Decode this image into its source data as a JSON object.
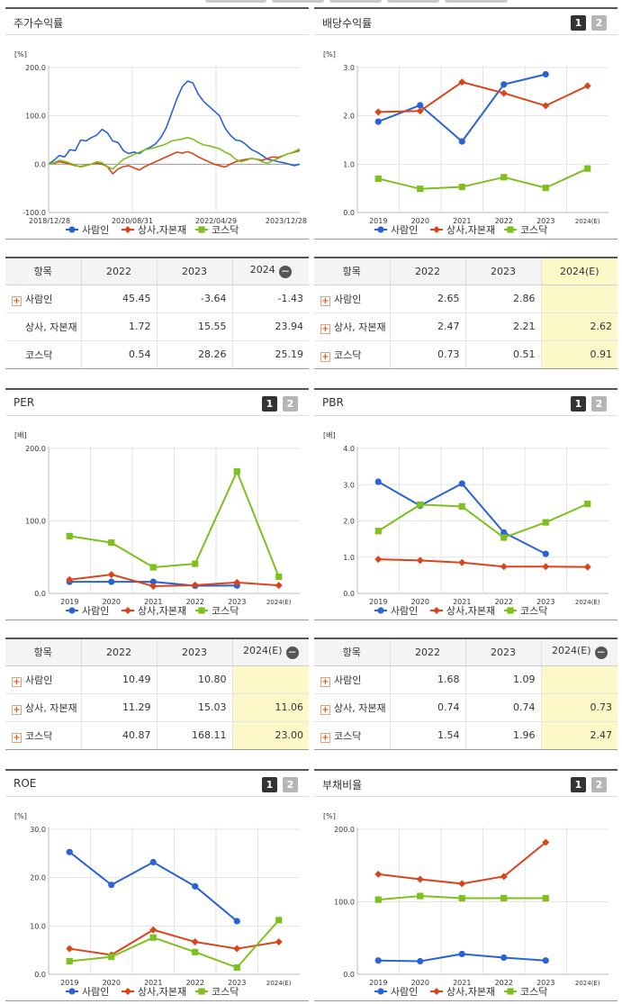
{
  "panels": [
    {
      "title": "주가수익률",
      "pager": [],
      "chart_data": {
        "type": "line",
        "unit": "[%]",
        "yticks": [
          "200.0",
          "100.0",
          "0.0",
          "-100.0"
        ],
        "ylim": [
          -100,
          200
        ],
        "x_labels": [
          "2018/12/28",
          "2020/08/31",
          "2022/04/29",
          "2023/12/28"
        ],
        "series": [
          {
            "name": "사람인",
            "color": "#2a63d4",
            "marker": "circle",
            "values": [
              0,
              8,
              18,
              15,
              30,
              28,
              50,
              48,
              55,
              60,
              72,
              65,
              48,
              45,
              28,
              22,
              25,
              22,
              30,
              35,
              42,
              55,
              75,
              105,
              135,
              160,
              172,
              168,
              145,
              130,
              120,
              110,
              100,
              75,
              60,
              50,
              48,
              40,
              30,
              25,
              18,
              10,
              8,
              5,
              3,
              0,
              -3,
              0
            ]
          },
          {
            "name": "상사,자본재",
            "color": "#d9441b",
            "marker": "diamond",
            "values": [
              0,
              2,
              5,
              3,
              0,
              -3,
              -5,
              -2,
              0,
              2,
              0,
              -5,
              -20,
              -10,
              -5,
              -3,
              -8,
              -12,
              -5,
              0,
              5,
              10,
              15,
              20,
              25,
              23,
              26,
              22,
              15,
              10,
              5,
              0,
              -3,
              -6,
              0,
              5,
              8,
              10,
              12,
              10,
              8,
              12,
              15,
              14,
              18,
              22,
              25,
              28
            ]
          },
          {
            "name": "코스닥",
            "color": "#7ec01f",
            "marker": "square",
            "values": [
              0,
              3,
              8,
              6,
              2,
              -2,
              -6,
              -3,
              0,
              5,
              3,
              -5,
              -10,
              0,
              10,
              15,
              20,
              25,
              30,
              32,
              35,
              38,
              42,
              48,
              50,
              52,
              55,
              52,
              45,
              40,
              38,
              35,
              32,
              25,
              20,
              10,
              5,
              8,
              12,
              10,
              5,
              2,
              8,
              12,
              18,
              22,
              26,
              32
            ]
          }
        ]
      }
    },
    {
      "title": "배당수익률",
      "pager": [
        "1",
        "2"
      ],
      "chart_data": {
        "type": "line",
        "unit": "[%]",
        "yticks": [
          "3.0",
          "2.0",
          "1.0",
          "0.0"
        ],
        "ylim": [
          0,
          3
        ],
        "categories": [
          "2019",
          "2020",
          "2021",
          "2022",
          "2023",
          "2024(E)"
        ],
        "series": [
          {
            "name": "사람인",
            "color": "#2a63d4",
            "marker": "circle",
            "values": [
              1.88,
              2.22,
              1.47,
              2.65,
              2.86,
              null
            ]
          },
          {
            "name": "상사,자본재",
            "color": "#d9441b",
            "marker": "diamond",
            "values": [
              2.08,
              2.1,
              2.7,
              2.47,
              2.21,
              2.62
            ]
          },
          {
            "name": "코스닥",
            "color": "#7ec01f",
            "marker": "square",
            "values": [
              0.7,
              0.49,
              0.53,
              0.73,
              0.51,
              0.91
            ]
          }
        ]
      }
    },
    {
      "title": "PER",
      "pager": [
        "1",
        "2"
      ],
      "chart_data": {
        "type": "line",
        "unit": "[배]",
        "yticks": [
          "200.0",
          "100.0",
          "0.0"
        ],
        "ylim": [
          0,
          200
        ],
        "categories": [
          "2019",
          "2020",
          "2021",
          "2022",
          "2023",
          "2024(E)"
        ],
        "series": [
          {
            "name": "사람인",
            "color": "#2a63d4",
            "marker": "circle",
            "values": [
              16,
              16,
              16,
              10.49,
              10.8,
              null
            ]
          },
          {
            "name": "상사,자본재",
            "color": "#d9441b",
            "marker": "diamond",
            "values": [
              19,
              26,
              10,
              11.29,
              15.03,
              11.06
            ]
          },
          {
            "name": "코스닥",
            "color": "#7ec01f",
            "marker": "square",
            "values": [
              79,
              70,
              36,
              40.87,
              168.11,
              23.0
            ]
          }
        ]
      }
    },
    {
      "title": "PBR",
      "pager": [
        "1",
        "2"
      ],
      "chart_data": {
        "type": "line",
        "unit": "[배]",
        "yticks": [
          "4.0",
          "3.0",
          "2.0",
          "1.0",
          "0.0"
        ],
        "ylim": [
          0,
          4
        ],
        "categories": [
          "2019",
          "2020",
          "2021",
          "2022",
          "2023",
          "2024(E)"
        ],
        "series": [
          {
            "name": "사람인",
            "color": "#2a63d4",
            "marker": "circle",
            "values": [
              3.08,
              2.42,
              3.03,
              1.68,
              1.09,
              null
            ]
          },
          {
            "name": "상사,자본재",
            "color": "#d9441b",
            "marker": "diamond",
            "values": [
              0.94,
              0.91,
              0.85,
              0.74,
              0.74,
              0.73
            ]
          },
          {
            "name": "코스닥",
            "color": "#7ec01f",
            "marker": "square",
            "values": [
              1.72,
              2.45,
              2.4,
              1.54,
              1.96,
              2.47
            ]
          }
        ]
      }
    },
    {
      "title": "ROE",
      "pager": [
        "1",
        "2"
      ],
      "chart_data": {
        "type": "line",
        "unit": "[%]",
        "yticks": [
          "30.0",
          "20.0",
          "10.0",
          "0.0"
        ],
        "ylim": [
          0,
          30
        ],
        "categories": [
          "2019",
          "2020",
          "2021",
          "2022",
          "2023",
          "2024(E)"
        ],
        "series": [
          {
            "name": "사람인",
            "color": "#2a63d4",
            "marker": "circle",
            "values": [
              25.3,
              18.5,
              23.2,
              18.2,
              11.0,
              null
            ]
          },
          {
            "name": "상사,자본재",
            "color": "#d9441b",
            "marker": "diamond",
            "values": [
              5.3,
              4.0,
              9.2,
              6.7,
              5.3,
              6.7
            ]
          },
          {
            "name": "코스닥",
            "color": "#7ec01f",
            "marker": "square",
            "values": [
              2.7,
              3.6,
              7.6,
              4.6,
              1.4,
              11.2
            ]
          }
        ]
      }
    },
    {
      "title": "부채비율",
      "pager": [
        "1",
        "2"
      ],
      "chart_data": {
        "type": "line",
        "unit": "[%]",
        "yticks": [
          "200.0",
          "100.0",
          "0.0"
        ],
        "ylim": [
          0,
          200
        ],
        "categories": [
          "2019",
          "2020",
          "2021",
          "2022",
          "2023",
          "2024(E)"
        ],
        "series": [
          {
            "name": "사람인",
            "color": "#2a63d4",
            "marker": "circle",
            "values": [
              19,
              18,
              28,
              23,
              19,
              null
            ]
          },
          {
            "name": "상사,자본재",
            "color": "#d9441b",
            "marker": "diamond",
            "values": [
              138,
              131,
              125,
              135,
              182,
              null
            ]
          },
          {
            "name": "코스닥",
            "color": "#7ec01f",
            "marker": "square",
            "values": [
              103,
              108,
              105,
              105,
              105,
              null
            ]
          }
        ]
      }
    }
  ],
  "tables": [
    {
      "header": [
        "항목",
        "2022",
        "2023",
        "2024"
      ],
      "rows": [
        {
          "label": "사람인",
          "plus": true,
          "cells": [
            "45.45",
            "-3.64",
            "-1.43"
          ],
          "hl": false
        },
        {
          "label": "상사, 자본재",
          "plus": false,
          "cells": [
            "1.72",
            "15.55",
            "23.94"
          ],
          "hl": false
        },
        {
          "label": "코스닥",
          "plus": false,
          "cells": [
            "0.54",
            "28.26",
            "25.19"
          ],
          "hl": false
        }
      ]
    },
    {
      "header": [
        "항목",
        "2022",
        "2023",
        "2024(E)"
      ],
      "rows": [
        {
          "label": "사람인",
          "plus": true,
          "cells": [
            "2.65",
            "2.86",
            ""
          ],
          "hl": true
        },
        {
          "label": "상사, 자본재",
          "plus": true,
          "cells": [
            "2.47",
            "2.21",
            "2.62"
          ],
          "hl": true
        },
        {
          "label": "코스닥",
          "plus": true,
          "cells": [
            "0.73",
            "0.51",
            "0.91"
          ],
          "hl": true
        }
      ]
    },
    {
      "header": [
        "항목",
        "2022",
        "2023",
        "2024(E)"
      ],
      "rows": [
        {
          "label": "사람인",
          "plus": true,
          "cells": [
            "10.49",
            "10.80",
            ""
          ],
          "hl": true
        },
        {
          "label": "상사, 자본재",
          "plus": true,
          "cells": [
            "11.29",
            "15.03",
            "11.06"
          ],
          "hl": true
        },
        {
          "label": "코스닥",
          "plus": true,
          "cells": [
            "40.87",
            "168.11",
            "23.00"
          ],
          "hl": true
        }
      ]
    },
    {
      "header": [
        "항목",
        "2022",
        "2023",
        "2024(E)"
      ],
      "rows": [
        {
          "label": "사람인",
          "plus": true,
          "cells": [
            "1.68",
            "1.09",
            ""
          ],
          "hl": true
        },
        {
          "label": "상사, 자본재",
          "plus": true,
          "cells": [
            "0.74",
            "0.74",
            "0.73"
          ],
          "hl": true
        },
        {
          "label": "코스닥",
          "plus": true,
          "cells": [
            "1.54",
            "1.96",
            "2.47"
          ],
          "hl": true
        }
      ]
    }
  ]
}
